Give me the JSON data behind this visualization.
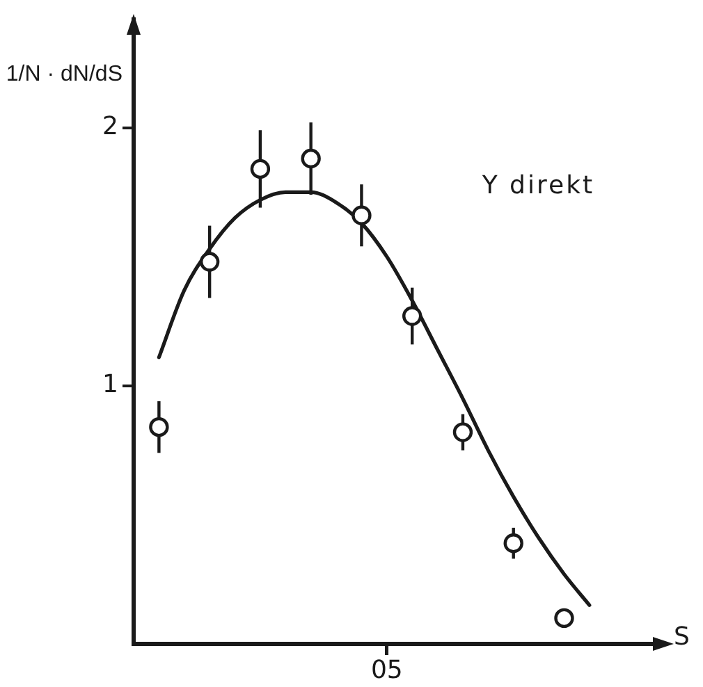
{
  "chart_data": {
    "type": "line",
    "xlabel": "S",
    "ylabel": "1/N · dN/dS",
    "annotations": [
      "Υ direkt"
    ],
    "categories": [
      null,
      null,
      null,
      null,
      null,
      null,
      null,
      null,
      null,
      null,
      "05",
      null,
      null,
      null,
      null,
      null,
      null,
      null,
      null,
      null,
      null,
      null
    ],
    "ylim": [
      0,
      2.42
    ],
    "yticks": [
      {
        "value": 1,
        "label": "1"
      },
      {
        "value": 2,
        "label": "2"
      }
    ],
    "grid": false,
    "legend": false,
    "series": [
      {
        "type": "scatter",
        "color": "#1a1a1a",
        "marker": "circle",
        "values": [
          null,
          0.84,
          null,
          1.48,
          null,
          1.84,
          null,
          1.88,
          null,
          1.66,
          null,
          1.27,
          null,
          0.82,
          null,
          0.39,
          null,
          0.1,
          null,
          null,
          null,
          null
        ],
        "errors": [
          null,
          0.1,
          null,
          0.14,
          null,
          0.15,
          null,
          0.14,
          null,
          0.12,
          null,
          0.11,
          null,
          0.07,
          null,
          0.06,
          null,
          null,
          null,
          null,
          null,
          null
        ]
      },
      {
        "color": "#1a1a1a",
        "marker": "none",
        "line_style": "solid",
        "values": [
          null,
          1.11,
          1.37,
          1.53,
          1.65,
          1.72,
          1.75,
          1.75,
          1.71,
          1.63,
          1.5,
          1.33,
          1.14,
          0.95,
          0.75,
          0.57,
          0.41,
          0.27,
          0.15,
          null,
          null,
          null
        ]
      }
    ]
  }
}
